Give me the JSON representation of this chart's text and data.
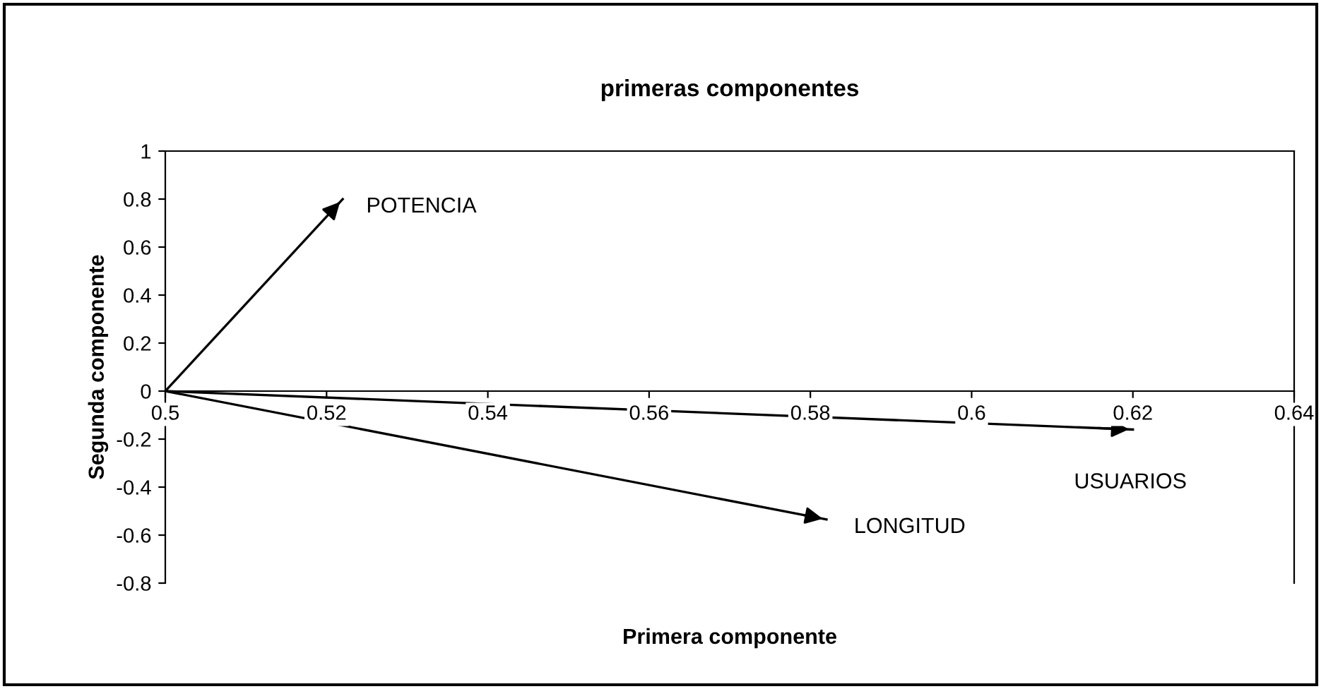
{
  "chart_data": {
    "type": "line",
    "title": "primeras componentes",
    "xlabel": "Primera componente",
    "ylabel": "Segunda componente",
    "series": [
      {
        "color": "#000000",
        "x": [
          0.5,
          0.522
        ],
        "values": [
          0,
          0.8
        ]
      },
      {
        "color": "#000000",
        "x": [
          0.5,
          0.62
        ],
        "values": [
          0,
          -0.16
        ]
      },
      {
        "color": "#000000",
        "x": [
          0.5,
          0.582
        ],
        "values": [
          0,
          -0.535
        ]
      }
    ],
    "annotations": [
      {
        "text": "POTENCIA",
        "x": 0.522,
        "y": 0.8
      },
      {
        "text": "USUARIOS",
        "x": 0.62,
        "y": -0.16
      },
      {
        "text": "LONGITUD",
        "x": 0.582,
        "y": -0.535
      }
    ],
    "xlim": [
      0.5,
      0.64
    ],
    "xticks": [
      0.5,
      0.52,
      0.54,
      0.56,
      0.58,
      0.6,
      0.62,
      0.64
    ],
    "ylim": [
      -0.8,
      1
    ],
    "yticks": [
      -0.8,
      -0.6,
      -0.4,
      -0.2,
      0,
      0.2,
      0.4,
      0.6,
      0.8,
      1
    ],
    "grid": false,
    "legend": false,
    "marker": "none",
    "line_style": "solid"
  }
}
